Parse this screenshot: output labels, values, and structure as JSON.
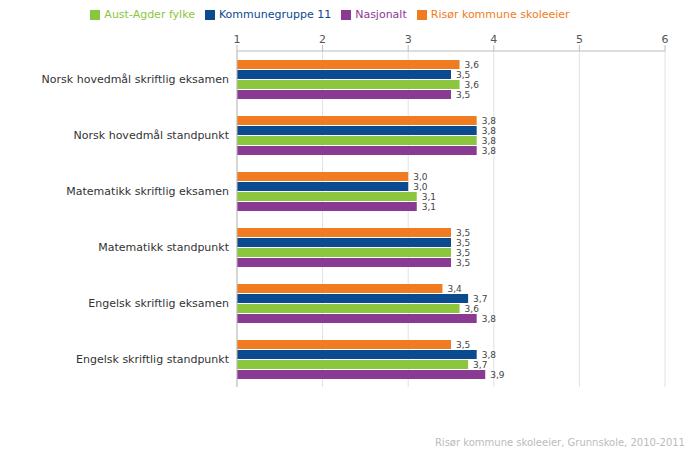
{
  "chart_data": {
    "type": "bar",
    "orientation": "horizontal",
    "data_labels": true,
    "grid": true,
    "legend": "top",
    "categories": [
      "Norsk hovedmål skriftlig eksamen",
      "Norsk hovedmål standpunkt",
      "Matematikk skriftlig eksamen",
      "Matematikk standpunkt",
      "Engelsk skriftlig eksamen",
      "Engelsk skriftlig standpunkt"
    ],
    "series": [
      {
        "name": "Risør kommune skoleeier",
        "color": "#f07c22",
        "values": [
          3.6,
          3.8,
          3.0,
          3.5,
          3.4,
          3.5
        ],
        "value_labels": [
          "3,6",
          "3,8",
          "3,0",
          "3,5",
          "3,4",
          "3,5"
        ]
      },
      {
        "name": "Kommunegruppe 11",
        "color": "#0a4a8f",
        "values": [
          3.5,
          3.8,
          3.0,
          3.5,
          3.7,
          3.8
        ],
        "value_labels": [
          "3,5",
          "3,8",
          "3,0",
          "3,5",
          "3,7",
          "3,8"
        ]
      },
      {
        "name": "Aust-Agder fylke",
        "color": "#8cc63e",
        "values": [
          3.6,
          3.8,
          3.1,
          3.5,
          3.6,
          3.7
        ],
        "value_labels": [
          "3,6",
          "3,8",
          "3,1",
          "3,5",
          "3,6",
          "3,7"
        ]
      },
      {
        "name": "Nasjonalt",
        "color": "#8b3a93",
        "values": [
          3.5,
          3.8,
          3.1,
          3.5,
          3.8,
          3.9
        ],
        "value_labels": [
          "3,5",
          "3,8",
          "3,1",
          "3,5",
          "3,8",
          "3,9"
        ]
      }
    ],
    "xlim": [
      1,
      6
    ],
    "xticks": [
      1,
      2,
      3,
      4,
      5,
      6
    ],
    "annotations": [
      "Risør kommune skoleeier, Grunnskole, 2010-2011"
    ]
  }
}
